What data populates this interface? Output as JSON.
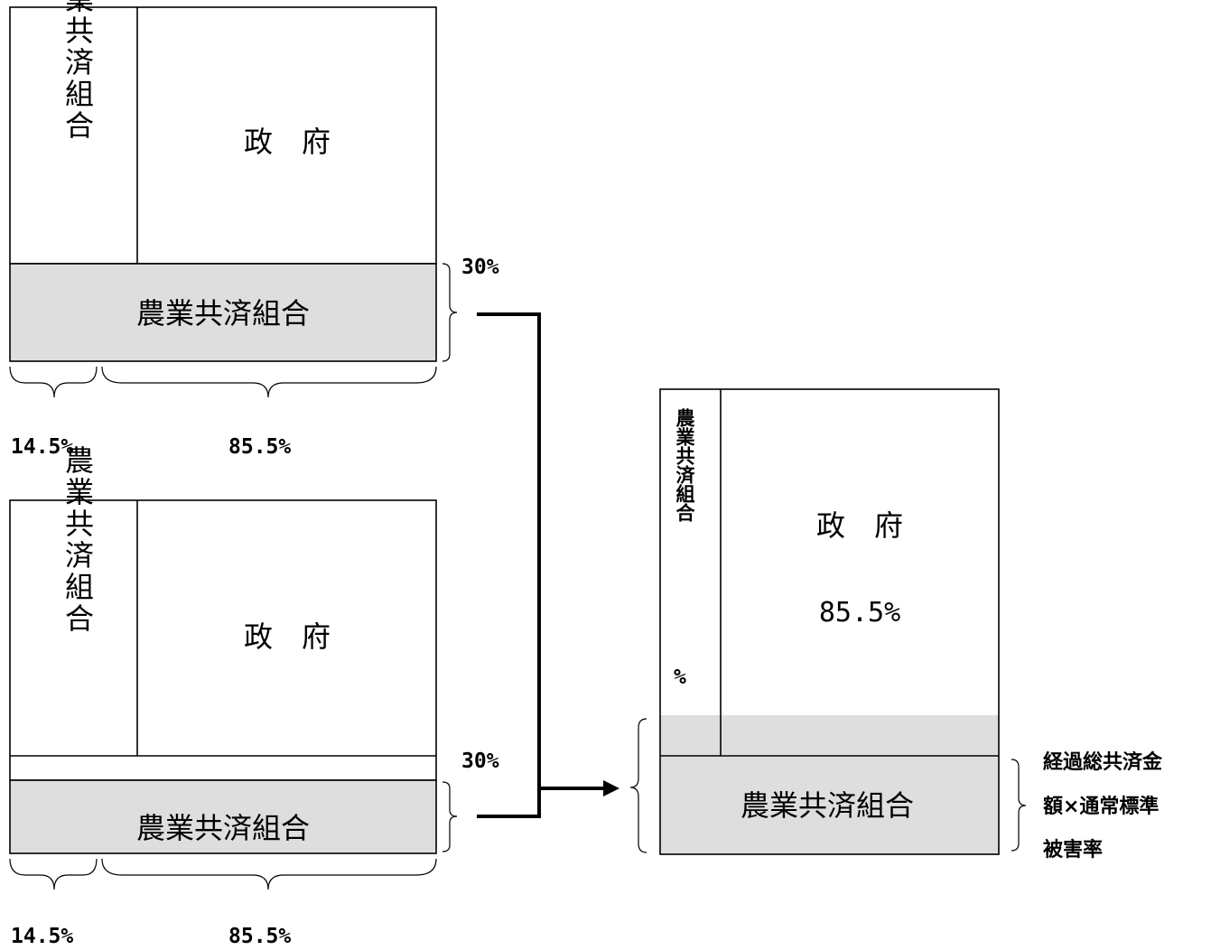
{
  "top_block": {
    "coop_vertical": "農業共済組合",
    "government": "政　府",
    "coop_bottom": "農業共済組合",
    "pct_right": "30%",
    "pct_left_bottom": "14.5%",
    "pct_right_bottom": "85.5%"
  },
  "bottom_block": {
    "coop_vertical": "農業共済組合",
    "government": "政　府",
    "coop_bottom": "農業共済組合",
    "pct_right": "30%",
    "pct_left_bottom": "14.5%",
    "pct_right_bottom": "85.5%"
  },
  "result_block": {
    "coop_vertical": "農業共済組合",
    "coop_vertical_pct": "%",
    "government": "政　府",
    "government_pct": "85.5%",
    "coop_bottom": "農業共済組合",
    "note_lines": [
      "経過総共済金",
      "額×通常標準",
      "被害率"
    ]
  },
  "colors": {
    "line": "#000000",
    "shade": "#dedede",
    "background": "#ffffff"
  }
}
